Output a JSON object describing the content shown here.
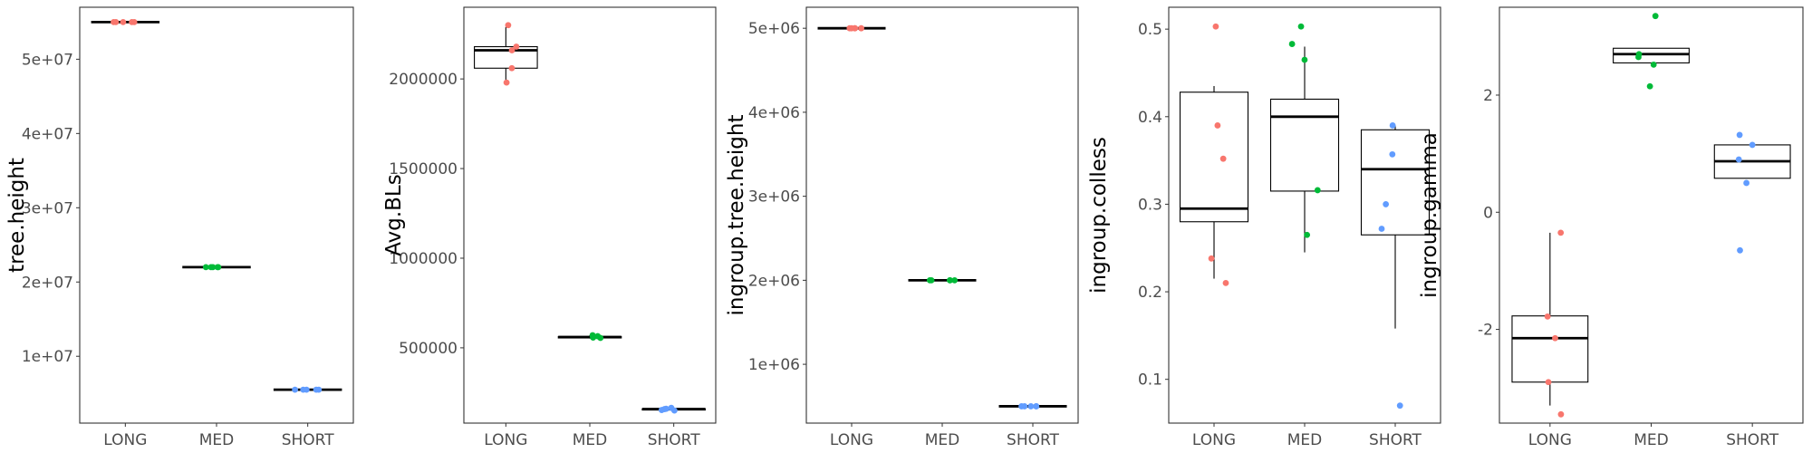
{
  "colors": {
    "LONG": "#F8766D",
    "MED": "#00BA38",
    "SHORT": "#619CFF",
    "box": "#000000",
    "panel_border": "#333333"
  },
  "chart_data": [
    {
      "type": "box",
      "ylabel": "tree.height",
      "categories": [
        "LONG",
        "MED",
        "SHORT"
      ],
      "ylim": [
        1000000,
        57000000
      ],
      "yticks": [
        10000000,
        20000000,
        30000000,
        40000000,
        50000000
      ],
      "yticklabels": [
        "1e+07",
        "2e+07",
        "3e+07",
        "4e+07",
        "5e+07"
      ],
      "boxes": [
        {
          "category": "LONG",
          "q1": 55000000,
          "median": 55000000,
          "q3": 55000000,
          "whisker_low": 55000000,
          "whisker_high": 55000000
        },
        {
          "category": "MED",
          "q1": 22000000,
          "median": 22000000,
          "q3": 22000000,
          "whisker_low": 22000000,
          "whisker_high": 22000000
        },
        {
          "category": "SHORT",
          "q1": 5500000,
          "median": 5500000,
          "q3": 5500000,
          "whisker_low": 5500000,
          "whisker_high": 5500000
        }
      ],
      "points": {
        "LONG": [
          55000000,
          55000000,
          55000000,
          55000000,
          55000000
        ],
        "MED": [
          22000000,
          22000000,
          22000000,
          22000000,
          22000000
        ],
        "SHORT": [
          5500000,
          5500000,
          5500000,
          5500000,
          5500000
        ]
      }
    },
    {
      "type": "box",
      "ylabel": "Avg.BLs",
      "categories": [
        "LONG",
        "MED",
        "SHORT"
      ],
      "ylim": [
        80000,
        2400000
      ],
      "yticks": [
        500000,
        1000000,
        1500000,
        2000000
      ],
      "yticklabels": [
        "500000",
        "1000000",
        "1500000",
        "2000000"
      ],
      "boxes": [
        {
          "category": "LONG",
          "q1": 2060000,
          "median": 2160000,
          "q3": 2180000,
          "whisker_low": 1990000,
          "whisker_high": 2290000
        },
        {
          "category": "MED",
          "q1": 555000,
          "median": 560000,
          "q3": 563000,
          "whisker_low": 552000,
          "whisker_high": 570000
        },
        {
          "category": "SHORT",
          "q1": 153000,
          "median": 158000,
          "q3": 160000,
          "whisker_low": 150000,
          "whisker_high": 165000
        }
      ],
      "points": {
        "LONG": [
          2300000,
          2180000,
          2160000,
          2060000,
          1980000
        ],
        "MED": [
          570000,
          565000,
          560000,
          557000,
          555000
        ],
        "SHORT": [
          165000,
          160000,
          158000,
          153000,
          150000
        ]
      }
    },
    {
      "type": "box",
      "ylabel": "ingroup.tree.height",
      "categories": [
        "LONG",
        "MED",
        "SHORT"
      ],
      "ylim": [
        300000,
        5250000
      ],
      "yticks": [
        1000000,
        2000000,
        3000000,
        4000000,
        5000000
      ],
      "yticklabels": [
        "1e+06",
        "2e+06",
        "3e+06",
        "4e+06",
        "5e+06"
      ],
      "boxes": [
        {
          "category": "LONG",
          "q1": 5000000,
          "median": 5000000,
          "q3": 5000000,
          "whisker_low": 5000000,
          "whisker_high": 5000000
        },
        {
          "category": "MED",
          "q1": 2000000,
          "median": 2000000,
          "q3": 2000000,
          "whisker_low": 2000000,
          "whisker_high": 2000000
        },
        {
          "category": "SHORT",
          "q1": 500000,
          "median": 500000,
          "q3": 500000,
          "whisker_low": 500000,
          "whisker_high": 500000
        }
      ],
      "points": {
        "LONG": [
          5000000,
          5000000,
          5000000,
          5000000,
          5000000
        ],
        "MED": [
          2000000,
          2000000,
          2000000,
          2000000,
          2000000
        ],
        "SHORT": [
          500000,
          500000,
          500000,
          500000,
          500000
        ]
      }
    },
    {
      "type": "box",
      "ylabel": "ingroup.colless",
      "categories": [
        "LONG",
        "MED",
        "SHORT"
      ],
      "ylim": [
        0.05,
        0.525
      ],
      "yticks": [
        0.1,
        0.2,
        0.3,
        0.4,
        0.5
      ],
      "yticklabels": [
        "0.1",
        "0.2",
        "0.3",
        "0.4",
        "0.5"
      ],
      "boxes": [
        {
          "category": "LONG",
          "q1": 0.28,
          "median": 0.295,
          "q3": 0.428,
          "whisker_low": 0.215,
          "whisker_high": 0.435
        },
        {
          "category": "MED",
          "q1": 0.315,
          "median": 0.4,
          "q3": 0.42,
          "whisker_low": 0.245,
          "whisker_high": 0.48
        },
        {
          "category": "SHORT",
          "q1": 0.265,
          "median": 0.34,
          "q3": 0.385,
          "whisker_low": 0.158,
          "whisker_high": 0.39
        }
      ],
      "points": {
        "LONG": [
          0.503,
          0.39,
          0.352,
          0.238,
          0.21
        ],
        "MED": [
          0.503,
          0.483,
          0.465,
          0.316,
          0.265
        ],
        "SHORT": [
          0.39,
          0.357,
          0.3,
          0.272,
          0.07
        ]
      }
    },
    {
      "type": "box",
      "ylabel": "ingroup.gamma",
      "categories": [
        "LONG",
        "MED",
        "SHORT"
      ],
      "ylim": [
        -3.6,
        3.5
      ],
      "yticks": [
        -2,
        0,
        2
      ],
      "yticklabels": [
        "-2",
        "0",
        "2"
      ],
      "boxes": [
        {
          "category": "LONG",
          "q1": -2.9,
          "median": -2.15,
          "q3": -1.77,
          "whisker_low": -3.3,
          "whisker_high": -0.35
        },
        {
          "category": "MED",
          "q1": 2.55,
          "median": 2.7,
          "q3": 2.8,
          "whisker_low": 2.55,
          "whisker_high": 2.8
        },
        {
          "category": "SHORT",
          "q1": 0.58,
          "median": 0.87,
          "q3": 1.15,
          "whisker_low": 0.58,
          "whisker_high": 1.15
        }
      ],
      "points": {
        "LONG": [
          -0.35,
          -1.78,
          -2.15,
          -2.9,
          -3.45
        ],
        "MED": [
          3.35,
          2.7,
          2.65,
          2.52,
          2.15
        ],
        "SHORT": [
          1.32,
          1.15,
          0.9,
          0.5,
          -0.65
        ]
      }
    }
  ]
}
